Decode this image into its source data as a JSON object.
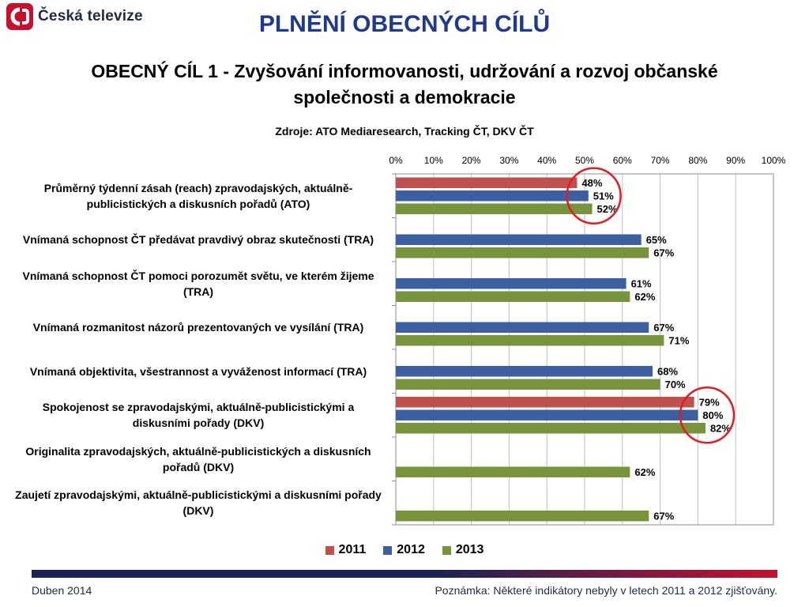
{
  "header": {
    "logo_text": "Česká televize",
    "title": "PLNĚNÍ OBECNÝCH CÍLŮ",
    "subtitle": "OBECNÝ CÍL 1 - Zvyšování informovanosti, udržování a rozvoj občanské společnosti a demokracie",
    "source": "Zdroje: ATO Mediaresearch, Tracking ČT, DKV ČT"
  },
  "colors": {
    "s2011": "#c0504d",
    "s2012": "#3b5fa0",
    "s2013": "#77933c",
    "accent": "#1f3a8a",
    "highlight": "#e31b23"
  },
  "chart_data": {
    "type": "bar",
    "orientation": "horizontal",
    "xlim": [
      0,
      100
    ],
    "x_ticks": [
      "0%",
      "10%",
      "20%",
      "30%",
      "40%",
      "50%",
      "60%",
      "70%",
      "80%",
      "90%",
      "100%"
    ],
    "categories": [
      "Průměrný týdenní zásah (reach) zpravodajských, aktuálně-publicistických a diskusních pořadů (ATO)",
      "Vnímaná schopnost ČT předávat pravdivý obraz skutečnosti (TRA)",
      "Vnímaná schopnost ČT pomoci porozumět světu, ve kterém žijeme (TRA)",
      "Vnímaná rozmanitost názorů prezentovaných ve vysílání (TRA)",
      "Vnímaná objektivita, všestrannost a vyváženost informací (TRA)",
      "Spokojenost se zpravodajskými, aktuálně-publicistickými a diskusními pořady (DKV)",
      "Originalita zpravodajských, aktuálně-publicistických a diskusních pořadů (DKV)",
      "Zaujetí zpravodajskými, aktuálně-publicistickými a diskusními pořady (DKV)"
    ],
    "series": [
      {
        "name": "2011",
        "values": [
          48,
          null,
          null,
          null,
          null,
          79,
          null,
          null
        ]
      },
      {
        "name": "2012",
        "values": [
          51,
          65,
          61,
          67,
          68,
          80,
          null,
          null
        ]
      },
      {
        "name": "2013",
        "values": [
          52,
          67,
          62,
          71,
          70,
          82,
          62,
          67
        ]
      }
    ],
    "value_labels": {
      "2011": [
        "48%",
        null,
        null,
        null,
        null,
        "79%",
        null,
        null
      ],
      "2012": [
        "51%",
        "65%",
        "61%",
        "67%",
        "68%",
        "80%",
        null,
        null
      ],
      "2013": [
        "52%",
        "67%",
        "62%",
        "71%",
        "70%",
        "82%",
        "62%",
        "67%"
      ]
    },
    "highlighted_categories": [
      0,
      5
    ],
    "grid": true,
    "legend_position": "bottom"
  },
  "footer": {
    "date": "Duben 2014",
    "note": "Poznámka: Některé indikátory nebyly v letech 2011 a 2012 zjišťovány."
  }
}
